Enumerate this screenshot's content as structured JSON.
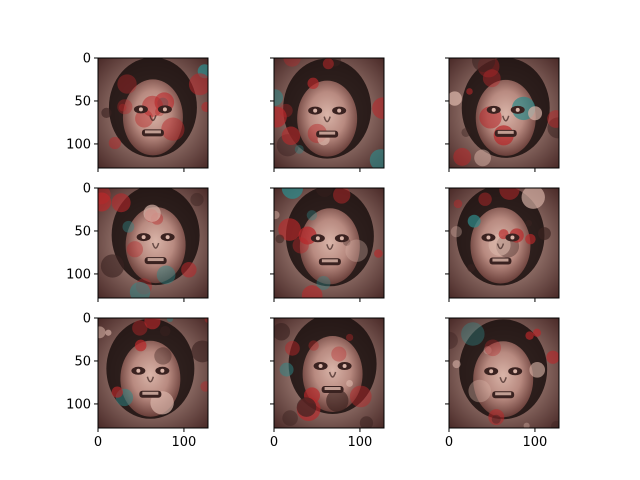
{
  "chart_data": {
    "type": "image_grid",
    "grid": {
      "rows": 3,
      "cols": 3
    },
    "sharex": true,
    "sharey": true,
    "xlim": [
      0,
      128
    ],
    "ylim": [
      128,
      0
    ],
    "x_ticks": [
      0,
      100
    ],
    "y_ticks": [
      0,
      50,
      100
    ],
    "x_tick_labels": [
      "0",
      "100"
    ],
    "y_tick_labels": [
      "0",
      "50",
      "100"
    ],
    "image_size": [
      128,
      128
    ],
    "image_content": "generated face sample",
    "palette": {
      "skin": "#b88a80",
      "skin_light": "#d9b4a8",
      "hair": "#1a0f0e",
      "shadow": "#3a2220",
      "red_artifact": "#b8282a",
      "cyan_artifact": "#2e8a8a",
      "background": "#c9a89c"
    }
  }
}
